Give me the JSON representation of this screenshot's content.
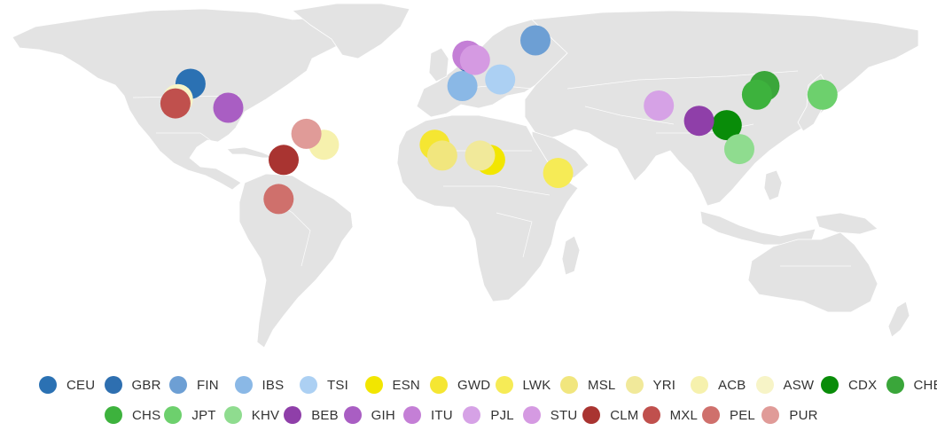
{
  "map": {
    "type": "world-map",
    "populations": [
      {
        "code": "CEU",
        "color": "#2b71b3",
        "lon": -112,
        "lat": 41
      },
      {
        "code": "GBR",
        "color": "#2e6fb0",
        "lon": -1,
        "lat": 53
      },
      {
        "code": "FIN",
        "color": "#6d9fd4",
        "lon": 25,
        "lat": 61
      },
      {
        "code": "IBS",
        "color": "#8ab8e6",
        "lon": -4,
        "lat": 40
      },
      {
        "code": "TSI",
        "color": "#acd0f3",
        "lon": 11,
        "lat": 43
      },
      {
        "code": "ESN",
        "color": "#f2e600",
        "lon": 7,
        "lat": 6
      },
      {
        "code": "GWD",
        "color": "#f5e632",
        "lon": -15,
        "lat": 13
      },
      {
        "code": "LWK",
        "color": "#f6eb56",
        "lon": 34,
        "lat": 0
      },
      {
        "code": "MSL",
        "color": "#f1e67e",
        "lon": -12,
        "lat": 8
      },
      {
        "code": "YRI",
        "color": "#f1e99a",
        "lon": 3,
        "lat": 8
      },
      {
        "code": "ACB",
        "color": "#f6f1ad",
        "lon": -59,
        "lat": 13
      },
      {
        "code": "ASW",
        "color": "#f7f4c7",
        "lon": -117,
        "lat": 34
      },
      {
        "code": "CDX",
        "color": "#098c09",
        "lon": 101,
        "lat": 22
      },
      {
        "code": "CHB",
        "color": "#3aa63a",
        "lon": 116,
        "lat": 40
      },
      {
        "code": "CHS",
        "color": "#3db23d",
        "lon": 113,
        "lat": 36
      },
      {
        "code": "JPT",
        "color": "#6dd06d",
        "lon": 139,
        "lat": 36
      },
      {
        "code": "KHV",
        "color": "#8fdc8f",
        "lon": 106,
        "lat": 11
      },
      {
        "code": "BEB",
        "color": "#8f3fa9",
        "lon": 90,
        "lat": 24
      },
      {
        "code": "GIH",
        "color": "#a95ec3",
        "lon": -97,
        "lat": 30
      },
      {
        "code": "ITU",
        "color": "#c47fd6",
        "lon": -2,
        "lat": 54
      },
      {
        "code": "PJL",
        "color": "#d6a2e6",
        "lon": 74,
        "lat": 31
      },
      {
        "code": "STU",
        "color": "#d59ae2",
        "lon": 1,
        "lat": 52
      },
      {
        "code": "CLM",
        "color": "#a93431",
        "lon": -75,
        "lat": 6
      },
      {
        "code": "MXL",
        "color": "#c0504d",
        "lon": -118,
        "lat": 32
      },
      {
        "code": "PEL",
        "color": "#cf706c",
        "lon": -77,
        "lat": -12
      },
      {
        "code": "PUR",
        "color": "#e09b98",
        "lon": -66,
        "lat": 18
      }
    ]
  },
  "legend": {
    "row1": [
      {
        "label": "CEU",
        "color": "#2b71b3"
      },
      {
        "label": "GBR",
        "color": "#2e6fb0"
      },
      {
        "label": "FIN",
        "color": "#6d9fd4"
      },
      {
        "label": "IBS",
        "color": "#8ab8e6"
      },
      {
        "label": "TSI",
        "color": "#acd0f3"
      },
      {
        "label": "ESN",
        "color": "#f2e600"
      },
      {
        "label": "GWD",
        "color": "#f5e632"
      },
      {
        "label": "LWK",
        "color": "#f6eb56"
      },
      {
        "label": "MSL",
        "color": "#f1e67e"
      },
      {
        "label": "YRI",
        "color": "#f1e99a"
      },
      {
        "label": "ACB",
        "color": "#f6f1ad"
      },
      {
        "label": "ASW",
        "color": "#f7f4c7"
      },
      {
        "label": "CDX",
        "color": "#098c09"
      },
      {
        "label": "CHB",
        "color": "#3aa63a"
      }
    ],
    "row2": [
      {
        "label": "CHS",
        "color": "#3db23d"
      },
      {
        "label": "JPT",
        "color": "#6dd06d"
      },
      {
        "label": "KHV",
        "color": "#8fdc8f"
      },
      {
        "label": "BEB",
        "color": "#8f3fa9"
      },
      {
        "label": "GIH",
        "color": "#a95ec3"
      },
      {
        "label": "ITU",
        "color": "#c47fd6"
      },
      {
        "label": "PJL",
        "color": "#d6a2e6"
      },
      {
        "label": "STU",
        "color": "#d59ae2"
      },
      {
        "label": "CLM",
        "color": "#a93431"
      },
      {
        "label": "MXL",
        "color": "#c0504d"
      },
      {
        "label": "PEL",
        "color": "#cf706c"
      },
      {
        "label": "PUR",
        "color": "#e09b98"
      }
    ]
  }
}
